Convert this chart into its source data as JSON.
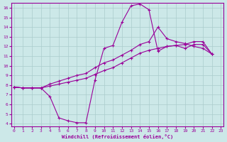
{
  "xlabel": "Windchill (Refroidissement éolien,°C)",
  "bg_color": "#cce8e8",
  "line_color": "#990099",
  "grid_color": "#aacccc",
  "line1_x": [
    0,
    1,
    2,
    3,
    4,
    5,
    6,
    7,
    8,
    9,
    10,
    11,
    12,
    13,
    14,
    15,
    16,
    17,
    18,
    19,
    20,
    21,
    22
  ],
  "line1_y": [
    7.8,
    7.7,
    7.7,
    7.7,
    6.8,
    4.6,
    4.3,
    4.1,
    4.1,
    8.5,
    11.8,
    12.1,
    14.5,
    16.2,
    16.4,
    15.8,
    11.5,
    12.0,
    12.1,
    11.8,
    12.2,
    12.2,
    11.2
  ],
  "line2_x": [
    0,
    1,
    2,
    3,
    4,
    5,
    6,
    7,
    8,
    9,
    10,
    11,
    12,
    13,
    14,
    15,
    16,
    17,
    18,
    19,
    20,
    21,
    22
  ],
  "line2_y": [
    7.8,
    7.7,
    7.7,
    7.7,
    7.9,
    8.1,
    8.3,
    8.5,
    8.7,
    9.1,
    9.5,
    9.8,
    10.3,
    10.8,
    11.3,
    11.6,
    11.8,
    12.0,
    12.1,
    12.2,
    12.5,
    12.5,
    11.2
  ],
  "line3_x": [
    0,
    1,
    2,
    3,
    4,
    5,
    6,
    7,
    8,
    9,
    10,
    11,
    12,
    13,
    14,
    15,
    16,
    17,
    18,
    19,
    20,
    21,
    22
  ],
  "line3_y": [
    7.8,
    7.7,
    7.7,
    7.7,
    8.1,
    8.4,
    8.7,
    9.0,
    9.2,
    9.8,
    10.3,
    10.6,
    11.1,
    11.6,
    12.2,
    12.5,
    14.0,
    12.8,
    12.5,
    12.3,
    12.0,
    11.8,
    11.2
  ],
  "xlim": [
    -0.3,
    23.3
  ],
  "ylim": [
    3.7,
    16.5
  ],
  "xticks": [
    0,
    1,
    2,
    3,
    4,
    5,
    6,
    7,
    8,
    9,
    10,
    11,
    12,
    13,
    14,
    15,
    16,
    17,
    18,
    19,
    20,
    21,
    22,
    23
  ],
  "yticks": [
    4,
    5,
    6,
    7,
    8,
    9,
    10,
    11,
    12,
    13,
    14,
    15,
    16
  ]
}
